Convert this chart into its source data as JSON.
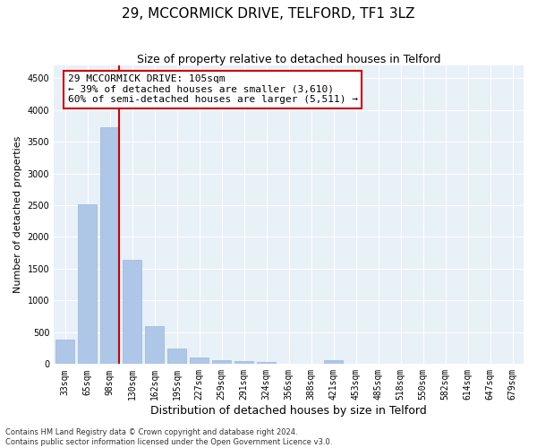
{
  "title": "29, MCCORMICK DRIVE, TELFORD, TF1 3LZ",
  "subtitle": "Size of property relative to detached houses in Telford",
  "xlabel": "Distribution of detached houses by size in Telford",
  "ylabel": "Number of detached properties",
  "categories": [
    "33sqm",
    "65sqm",
    "98sqm",
    "130sqm",
    "162sqm",
    "195sqm",
    "227sqm",
    "259sqm",
    "291sqm",
    "324sqm",
    "356sqm",
    "388sqm",
    "421sqm",
    "453sqm",
    "485sqm",
    "518sqm",
    "550sqm",
    "582sqm",
    "614sqm",
    "647sqm",
    "679sqm"
  ],
  "values": [
    380,
    2510,
    3730,
    1640,
    600,
    245,
    105,
    60,
    42,
    38,
    0,
    0,
    60,
    0,
    0,
    0,
    0,
    0,
    0,
    0,
    0
  ],
  "bar_color": "#aec6e8",
  "bar_edge_color": "#9ab8d8",
  "vline_color": "#cc0000",
  "annotation_text": "29 MCCORMICK DRIVE: 105sqm\n← 39% of detached houses are smaller (3,610)\n60% of semi-detached houses are larger (5,511) →",
  "ylim": [
    0,
    4700
  ],
  "yticks": [
    0,
    500,
    1000,
    1500,
    2000,
    2500,
    3000,
    3500,
    4000,
    4500
  ],
  "background_color": "#e8f0f8",
  "grid_color": "#ffffff",
  "title_fontsize": 11,
  "subtitle_fontsize": 9,
  "axis_label_fontsize": 8,
  "tick_fontsize": 7,
  "annotation_fontsize": 8,
  "footer_line1": "Contains HM Land Registry data © Crown copyright and database right 2024.",
  "footer_line2": "Contains public sector information licensed under the Open Government Licence v3.0."
}
